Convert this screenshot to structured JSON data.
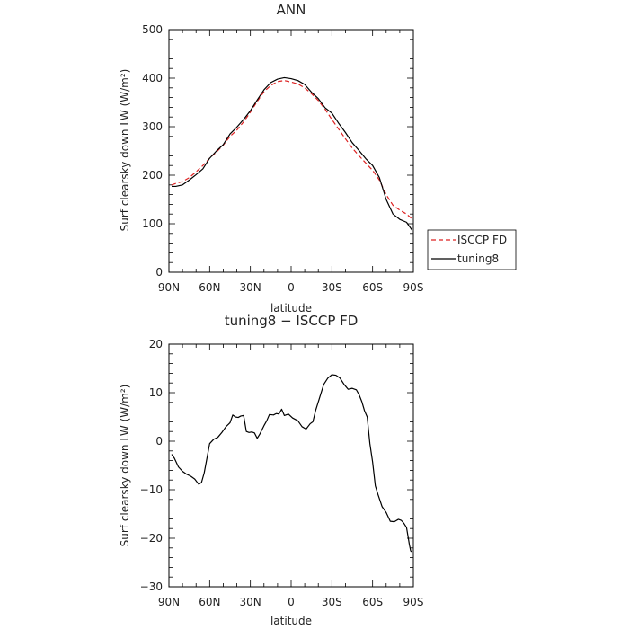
{
  "chart_data": [
    {
      "type": "line",
      "title": "ANN",
      "xlabel": "latitude",
      "ylabel": "Surf clearsky down LW (W/m²)",
      "xlim": [
        90,
        -90
      ],
      "ylim": [
        0,
        500
      ],
      "xticks": [
        90,
        60,
        30,
        0,
        -30,
        -60,
        -90
      ],
      "xtick_labels": [
        "90N",
        "60N",
        "30N",
        "0",
        "30S",
        "60S",
        "90S"
      ],
      "yticks": [
        0,
        100,
        200,
        300,
        400,
        500
      ],
      "ytick_labels": [
        "0",
        "100",
        "200",
        "300",
        "400",
        "500"
      ],
      "legend": "outside-right",
      "series": [
        {
          "name": "ISCCP FD",
          "color": "#dd2222",
          "dash": "dashed",
          "x": [
            88,
            85,
            80,
            75,
            70,
            65,
            60,
            55,
            50,
            45,
            40,
            35,
            30,
            25,
            20,
            15,
            10,
            5,
            0,
            -5,
            -10,
            -15,
            -20,
            -25,
            -30,
            -35,
            -40,
            -45,
            -50,
            -55,
            -60,
            -65,
            -70,
            -75,
            -80,
            -85,
            -89
          ],
          "y": [
            180,
            183,
            187,
            195,
            207,
            220,
            235,
            248,
            262,
            280,
            293,
            310,
            330,
            352,
            372,
            385,
            393,
            395,
            392,
            388,
            380,
            368,
            354,
            336,
            315,
            295,
            275,
            256,
            240,
            225,
            210,
            190,
            160,
            138,
            128,
            120,
            110
          ]
        },
        {
          "name": "tuning8",
          "color": "#000000",
          "dash": "solid",
          "x": [
            88,
            85,
            80,
            75,
            70,
            65,
            60,
            55,
            50,
            45,
            40,
            35,
            30,
            25,
            20,
            15,
            10,
            5,
            0,
            -5,
            -10,
            -15,
            -20,
            -25,
            -30,
            -35,
            -40,
            -45,
            -50,
            -55,
            -60,
            -65,
            -70,
            -75,
            -80,
            -85,
            -89
          ],
          "y": [
            177,
            177,
            180,
            190,
            201,
            213,
            235,
            250,
            263,
            285,
            299,
            315,
            333,
            355,
            376,
            391,
            398,
            401,
            399,
            395,
            387,
            371,
            358,
            339,
            328,
            307,
            288,
            267,
            251,
            234,
            220,
            195,
            150,
            120,
            109,
            103,
            87
          ]
        }
      ]
    },
    {
      "type": "line",
      "title": "tuning8 − ISCCP FD",
      "xlabel": "latitude",
      "ylabel": "Surf clearsky down LW (W/m²)",
      "xlim": [
        90,
        -90
      ],
      "ylim": [
        -30,
        20
      ],
      "xticks": [
        90,
        60,
        30,
        0,
        -30,
        -60,
        -90
      ],
      "xtick_labels": [
        "90N",
        "60N",
        "30N",
        "0",
        "30S",
        "60S",
        "90S"
      ],
      "yticks": [
        -30,
        -20,
        -10,
        0,
        10,
        20
      ],
      "ytick_labels": [
        "−30",
        "−20",
        "−10",
        "0",
        "10",
        "20"
      ],
      "series": [
        {
          "color": "#000000",
          "dash": "solid",
          "x": [
            88,
            86,
            83,
            80,
            77,
            74,
            71,
            68,
            66,
            64,
            62,
            60,
            57,
            54,
            51,
            48,
            45,
            43,
            41,
            39,
            37,
            35,
            33,
            31,
            29,
            27,
            25,
            23,
            20,
            18,
            16,
            13,
            11,
            9,
            7,
            5,
            2,
            -1,
            -3,
            -5,
            -8,
            -11,
            -14,
            -16,
            -18,
            -21,
            -24,
            -27,
            -30,
            -33,
            -36,
            -39,
            -42,
            -45,
            -48,
            -50,
            -52,
            -54,
            -56,
            -58,
            -60,
            -62,
            -64,
            -67,
            -70,
            -73,
            -76,
            -79,
            -81,
            -83,
            -85,
            -86,
            -87,
            -88,
            -89
          ],
          "y": [
            -2.7,
            -3.5,
            -5.3,
            -6.2,
            -6.8,
            -7.2,
            -7.8,
            -8.9,
            -8.5,
            -6.5,
            -3.5,
            -0.5,
            0.4,
            0.8,
            1.8,
            3,
            3.8,
            5.4,
            5,
            4.9,
            5.2,
            5.3,
            2,
            1.8,
            1.9,
            1.7,
            0.6,
            1.5,
            3.2,
            4.2,
            5.5,
            5.4,
            5.7,
            5.6,
            6.6,
            5.3,
            5.6,
            4.8,
            4.5,
            4.2,
            3,
            2.5,
            3.6,
            4,
            6.3,
            9,
            11.7,
            13,
            13.7,
            13.6,
            13,
            11.7,
            10.7,
            10.9,
            10.6,
            9.6,
            8.2,
            6.3,
            5,
            -0.5,
            -4.3,
            -9.2,
            -11,
            -13.5,
            -14.7,
            -16.5,
            -16.6,
            -16.1,
            -16.3,
            -16.9,
            -17.8,
            -19.5,
            -21.2,
            -22.6,
            -22.8
          ]
        }
      ]
    }
  ]
}
